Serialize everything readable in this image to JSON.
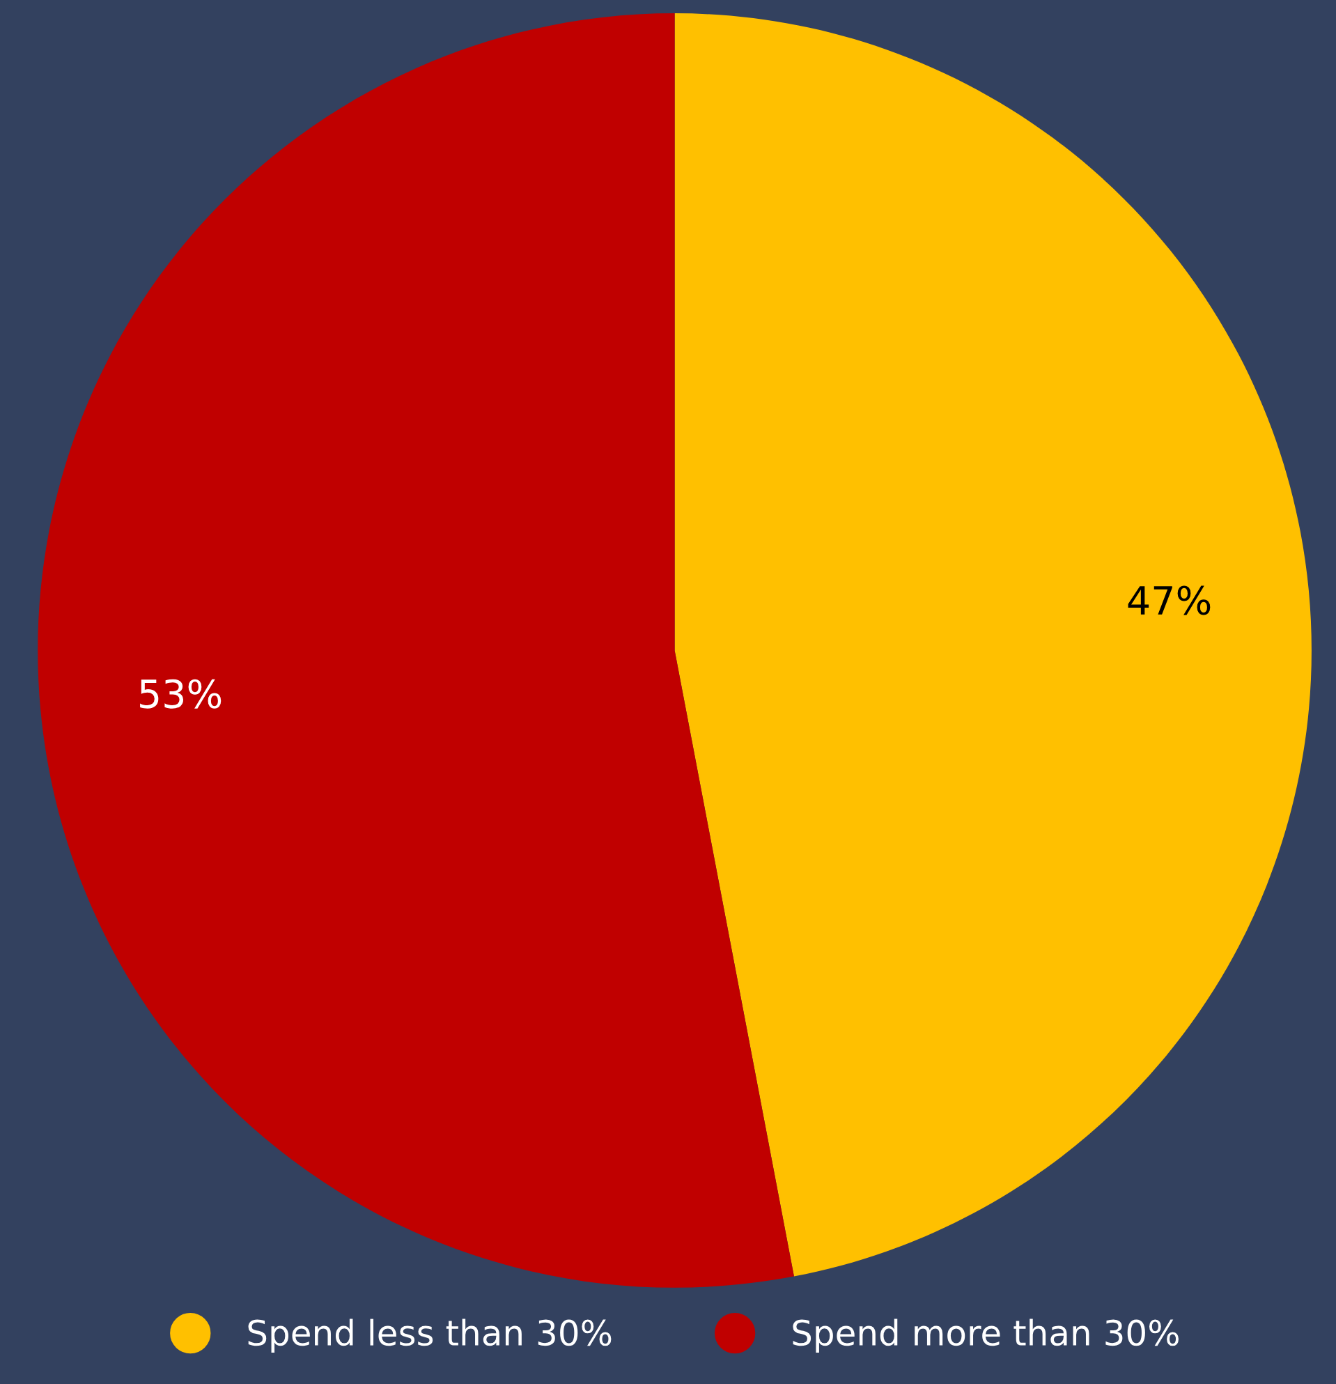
{
  "chart_data": {
    "type": "pie",
    "categories": [
      "Spend less than 30%",
      "Spend more than 30%"
    ],
    "values": [
      47,
      53
    ],
    "value_labels": [
      "47%",
      "53%"
    ],
    "colors": [
      "#ffc000",
      "#c00000"
    ],
    "legend": "bottom"
  }
}
